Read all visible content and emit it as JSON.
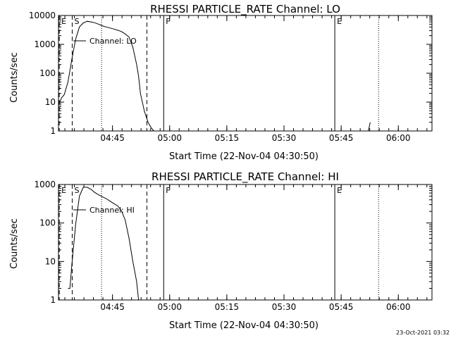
{
  "footer": {
    "timestamp": "23-Oct-2021 03:32"
  },
  "chart_data": [
    {
      "type": "line",
      "title": "RHESSI PARTICLE_RATE Channel: LO",
      "xlabel": "Start Time (22-Nov-04 04:30:50)",
      "ylabel": "Counts/sec",
      "yscale": "log",
      "ylim": [
        1,
        10000
      ],
      "xlim": [
        0.0,
        98.0
      ],
      "x_tick_labels": [
        "04:45",
        "05:00",
        "05:15",
        "05:30",
        "05:45",
        "06:00"
      ],
      "x_tick_values": [
        14.17,
        29.17,
        44.17,
        59.17,
        74.17,
        89.17
      ],
      "y_tick_labels": [
        "1",
        "10",
        "100",
        "1000",
        "10000"
      ],
      "y_tick_values": [
        1,
        10,
        100,
        1000,
        10000
      ],
      "legend": "Channel: LO",
      "legend_position": "upper-left",
      "markers": [
        {
          "label": "E",
          "x": 0.2,
          "style": "dashed"
        },
        {
          "label": "S",
          "x": 3.6,
          "style": "dashed"
        },
        {
          "label": "",
          "x": 11.3,
          "style": "dotted"
        },
        {
          "label": "",
          "x": 23.2,
          "style": "dashed"
        },
        {
          "label": "F",
          "x": 27.6,
          "style": "solid"
        },
        {
          "label": "E",
          "x": 72.5,
          "style": "solid"
        },
        {
          "label": "",
          "x": 84.0,
          "style": "dotted"
        }
      ],
      "series": [
        {
          "x": [
            0.0,
            0.8,
            1.5,
            2.5,
            3.5,
            4.5,
            5.5,
            6.5,
            7.5,
            8.5,
            9.5,
            10.5,
            11.5,
            12.5,
            13.5,
            14.5,
            15.5,
            16.5,
            17.5,
            18.5,
            19.5,
            20.5,
            21.0,
            21.5,
            22.5,
            23.5,
            24.3,
            25.0
          ],
          "y": [
            8,
            14,
            18,
            50,
            300,
            1500,
            4000,
            5500,
            6300,
            6000,
            5600,
            5000,
            4400,
            4000,
            3700,
            3400,
            3100,
            2800,
            2300,
            1800,
            800,
            200,
            80,
            20,
            5,
            2,
            1.3,
            1
          ],
          "connect": true
        },
        {
          "x": [
            81.3,
            81.8
          ],
          "y": [
            1,
            2
          ],
          "connect": true
        }
      ]
    },
    {
      "type": "line",
      "title": "RHESSI PARTICLE_RATE Channel: HI",
      "xlabel": "Start Time (22-Nov-04 04:30:50)",
      "ylabel": "Counts/sec",
      "yscale": "log",
      "ylim": [
        1,
        1000
      ],
      "xlim": [
        0.0,
        98.0
      ],
      "x_tick_labels": [
        "04:45",
        "05:00",
        "05:15",
        "05:30",
        "05:45",
        "06:00"
      ],
      "x_tick_values": [
        14.17,
        29.17,
        44.17,
        59.17,
        74.17,
        89.17
      ],
      "y_tick_labels": [
        "1",
        "10",
        "100",
        "1000"
      ],
      "y_tick_values": [
        1,
        10,
        100,
        1000
      ],
      "legend": "Channel: HI",
      "legend_position": "upper-left",
      "markers": [
        {
          "label": "E",
          "x": 0.2,
          "style": "dashed"
        },
        {
          "label": "S",
          "x": 3.6,
          "style": "dashed"
        },
        {
          "label": "",
          "x": 11.3,
          "style": "dotted"
        },
        {
          "label": "",
          "x": 23.2,
          "style": "dashed"
        },
        {
          "label": "F",
          "x": 27.6,
          "style": "solid"
        },
        {
          "label": "E",
          "x": 72.5,
          "style": "solid"
        },
        {
          "label": "",
          "x": 84.0,
          "style": "dotted"
        }
      ],
      "series": [
        {
          "x": [
            2.5,
            3.0,
            3.5,
            4.5,
            5.5,
            6.5,
            7.5,
            8.5,
            9.5,
            10.5,
            11.5,
            12.5,
            13.5,
            14.5,
            15.5,
            16.5,
            17.5,
            18.5,
            19.5,
            20.5,
            21.0
          ],
          "y": [
            2,
            2,
            8,
            90,
            500,
            850,
            850,
            750,
            620,
            540,
            480,
            430,
            370,
            320,
            280,
            210,
            120,
            40,
            10,
            3,
            1
          ],
          "connect": true
        }
      ]
    }
  ]
}
